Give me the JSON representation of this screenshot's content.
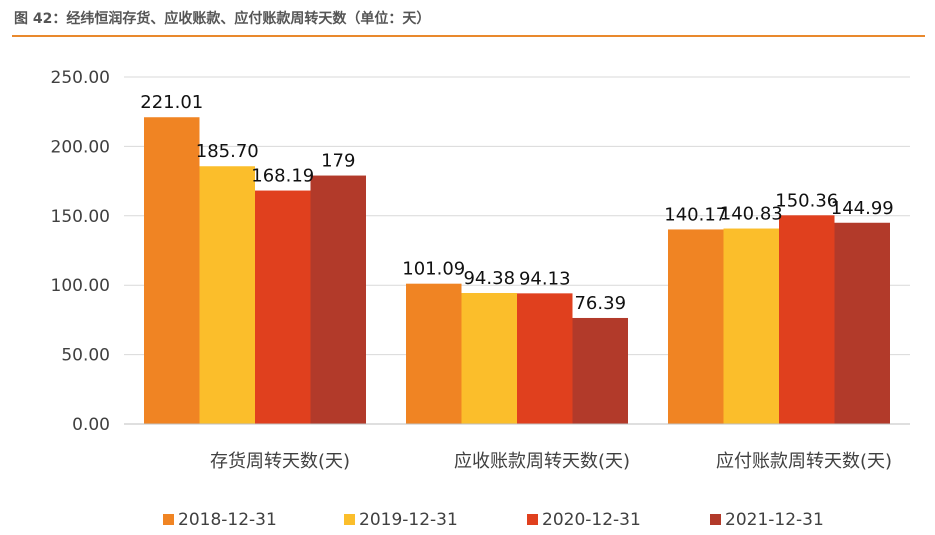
{
  "figure": {
    "title": "图 42：经纬恒润存货、应收账款、应付账款周转天数（单位：天）"
  },
  "chart_data": {
    "type": "bar",
    "categories": [
      "存货周转天数(天)",
      "应收账款周转天数(天)",
      "应付账款周转天数(天)"
    ],
    "series": [
      {
        "name": "2018-12-31",
        "color": "#F08423",
        "values": [
          221.01,
          101.09,
          140.17
        ],
        "labels": [
          "221.01",
          "101.09",
          "140.17"
        ]
      },
      {
        "name": "2019-12-31",
        "color": "#FBBE2B",
        "values": [
          185.7,
          94.38,
          140.83
        ],
        "labels": [
          "185.70",
          "94.38",
          "140.83"
        ]
      },
      {
        "name": "2020-12-31",
        "color": "#E0401E",
        "values": [
          168.19,
          94.13,
          150.36
        ],
        "labels": [
          "168.19",
          "94.13",
          "150.36"
        ]
      },
      {
        "name": "2021-12-31",
        "color": "#B23A2A",
        "values": [
          179,
          76.39,
          144.99
        ],
        "labels": [
          "179",
          "76.39",
          "144.99"
        ]
      }
    ],
    "ylim": [
      0,
      250
    ],
    "yticks": [
      "0.00",
      "50.00",
      "100.00",
      "150.00",
      "200.00",
      "250.00"
    ],
    "grid": true,
    "legend_position": "bottom",
    "gridline_color": "#D9D9D9"
  }
}
